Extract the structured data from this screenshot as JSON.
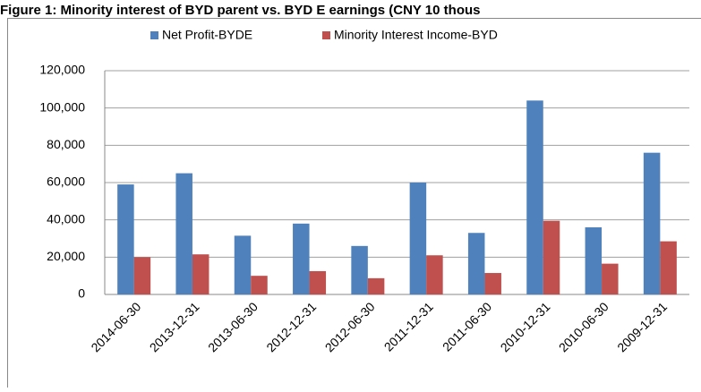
{
  "chart_data": {
    "type": "bar",
    "title": "Figure 1: Minority interest of BYD parent vs. BYD E earnings (CNY 10 thous",
    "categories": [
      "2014-06-30",
      "2013-12-31",
      "2013-06-30",
      "2012-12-31",
      "2012-06-30",
      "2011-12-31",
      "2011-06-30",
      "2010-12-31",
      "2010-06-30",
      "2009-12-31"
    ],
    "series": [
      {
        "name": "Net Profit-BYDE",
        "color": "#4f81bd",
        "values": [
          59000,
          65000,
          31500,
          38000,
          26000,
          60000,
          33000,
          104000,
          36000,
          76000
        ]
      },
      {
        "name": "Minority Interest  Income-BYD",
        "color": "#c0504d",
        "values": [
          20000,
          21500,
          10000,
          12500,
          8700,
          21000,
          11500,
          39500,
          16500,
          28500
        ]
      }
    ],
    "ylim": [
      0,
      120000
    ],
    "yticks": [
      0,
      {
        "value": 20000,
        "label": "20,000"
      },
      {
        "value": 40000,
        "label": "40,000"
      },
      {
        "value": 60000,
        "label": "60,000"
      },
      {
        "value": 80000,
        "label": "80,000"
      },
      {
        "value": 100000,
        "label": "100,000"
      },
      {
        "value": 120000,
        "label": "120,000"
      }
    ],
    "grid": true,
    "legend": "top"
  }
}
